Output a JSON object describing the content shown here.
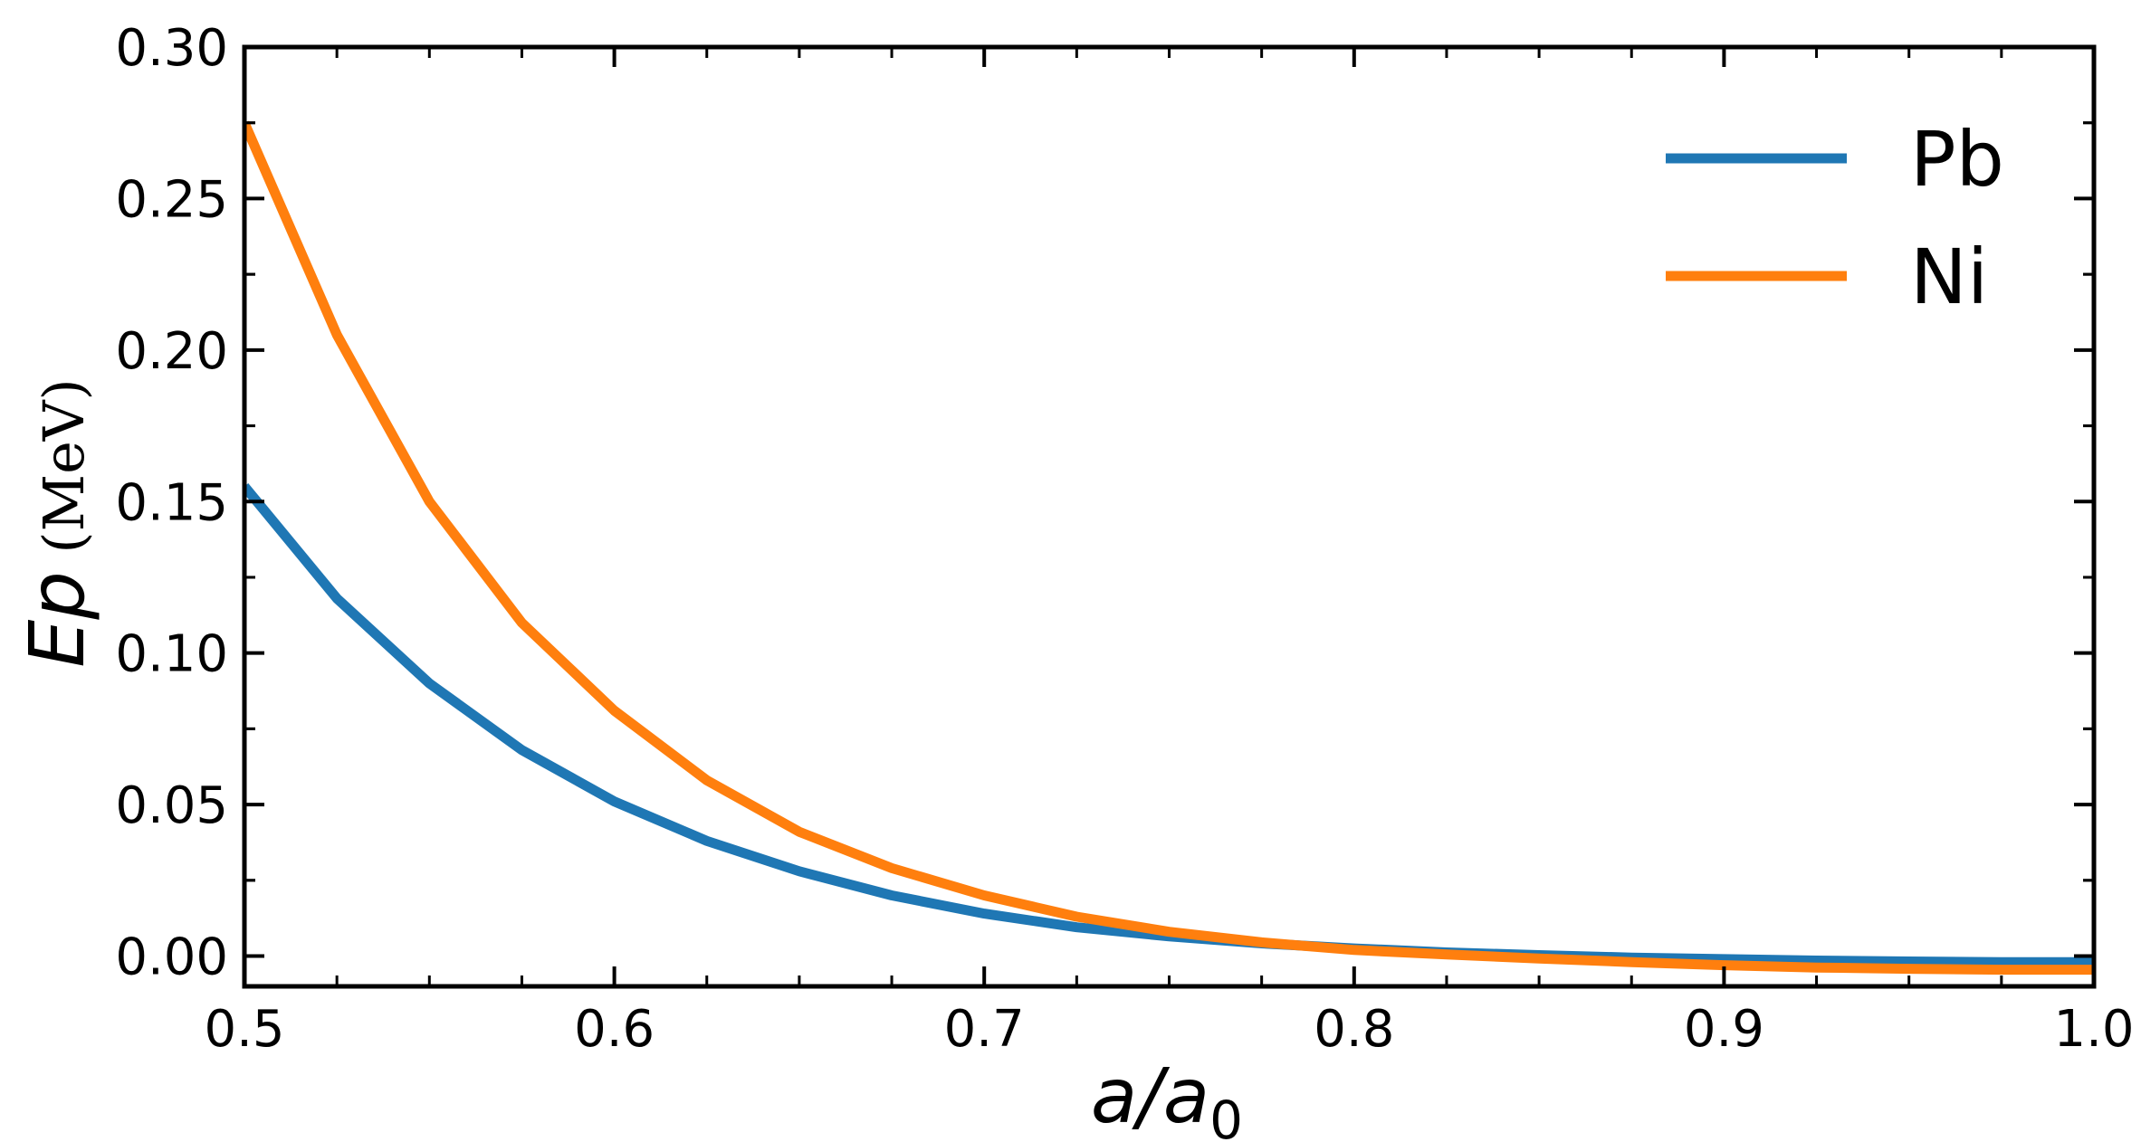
{
  "chart_data": {
    "type": "line",
    "xlabel": {
      "italic": "a/a",
      "subscript": "0"
    },
    "ylabel": {
      "italic": "Ep",
      "unit": " (MeV)"
    },
    "xlim": [
      0.5,
      1.0
    ],
    "ylim": [
      -0.01,
      0.3
    ],
    "x_ticks": [
      0.5,
      0.6,
      0.7,
      0.8,
      0.9,
      1.0
    ],
    "x_tick_labels": [
      "0.5",
      "0.6",
      "0.7",
      "0.8",
      "0.9",
      "1.0"
    ],
    "y_ticks": [
      0.0,
      0.05,
      0.1,
      0.15,
      0.2,
      0.25,
      0.3
    ],
    "y_tick_labels": [
      "0.00",
      "0.05",
      "0.10",
      "0.15",
      "0.20",
      "0.25",
      "0.30"
    ],
    "grid": false,
    "legend_position": "top-right",
    "x": [
      0.5,
      0.525,
      0.55,
      0.575,
      0.6,
      0.625,
      0.65,
      0.675,
      0.7,
      0.725,
      0.75,
      0.775,
      0.8,
      0.825,
      0.85,
      0.875,
      0.9,
      0.925,
      0.95,
      0.975,
      1.0
    ],
    "series": [
      {
        "name": "Pb",
        "color": "#1f77b4",
        "values": [
          0.155,
          0.118,
          0.09,
          0.068,
          0.051,
          0.038,
          0.028,
          0.02,
          0.014,
          0.0095,
          0.0065,
          0.0042,
          0.0025,
          0.0012,
          0.0003,
          -0.0005,
          -0.001,
          -0.0015,
          -0.0018,
          -0.002,
          -0.002
        ]
      },
      {
        "name": "Ni",
        "color": "#ff7f0e",
        "values": [
          0.275,
          0.205,
          0.15,
          0.11,
          0.081,
          0.058,
          0.041,
          0.029,
          0.02,
          0.013,
          0.008,
          0.0045,
          0.002,
          0.0005,
          -0.0008,
          -0.002,
          -0.003,
          -0.0038,
          -0.0042,
          -0.0045,
          -0.0045
        ]
      }
    ]
  }
}
